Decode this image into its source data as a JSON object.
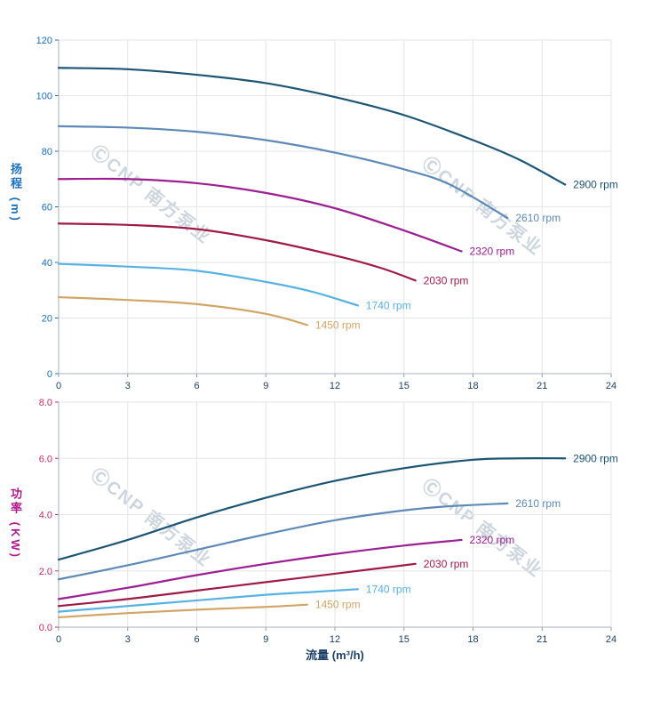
{
  "watermark": {
    "text": "ⒸCNP 南方泵业"
  },
  "x_axis_title": "流量 (m³/h)",
  "chart_data": [
    {
      "type": "line",
      "id": "head-chart",
      "ylabel_cjk": "扬程",
      "ylabel_unit": "(m)",
      "axis_color": "#1c6fba",
      "tick_label_color": "#1c6fba",
      "x_tick_color": "#1d4068",
      "xlim": [
        0,
        24
      ],
      "ylim": [
        0,
        120
      ],
      "x_ticks": [
        "0",
        "3",
        "6",
        "9",
        "12",
        "15",
        "18",
        "21",
        "24"
      ],
      "y_ticks": [
        "0",
        "20",
        "40",
        "60",
        "80",
        "100",
        "120"
      ],
      "grid": true,
      "legend_position": "curve-end",
      "series": [
        {
          "name": "2900 rpm",
          "color": "#1d5575",
          "points": [
            [
              0,
              110
            ],
            [
              3,
              109.5
            ],
            [
              6,
              107.5
            ],
            [
              9,
              104.5
            ],
            [
              12,
              99.5
            ],
            [
              15,
              93
            ],
            [
              18,
              84
            ],
            [
              20,
              77
            ],
            [
              22,
              68
            ]
          ]
        },
        {
          "name": "2610 rpm",
          "color": "#5e8ab8",
          "points": [
            [
              0,
              89
            ],
            [
              3,
              88.5
            ],
            [
              6,
              87
            ],
            [
              9,
              84
            ],
            [
              12,
              79.5
            ],
            [
              15,
              73.5
            ],
            [
              17,
              68
            ],
            [
              19.5,
              56
            ]
          ]
        },
        {
          "name": "2320 rpm",
          "color": "#9c1f93",
          "points": [
            [
              0,
              70
            ],
            [
              3,
              70
            ],
            [
              6,
              68.5
            ],
            [
              9,
              65
            ],
            [
              12,
              59.5
            ],
            [
              15,
              51.5
            ],
            [
              17.5,
              44
            ]
          ]
        },
        {
          "name": "2030 rpm",
          "color": "#a01a45",
          "points": [
            [
              0,
              54
            ],
            [
              3,
              53.5
            ],
            [
              6,
              52
            ],
            [
              9,
              48
            ],
            [
              12,
              42.5
            ],
            [
              14,
              38
            ],
            [
              15.5,
              33.5
            ]
          ]
        },
        {
          "name": "1740 rpm",
          "color": "#57b2e4",
          "points": [
            [
              0,
              39.5
            ],
            [
              3,
              38.5
            ],
            [
              6,
              37
            ],
            [
              9,
              33
            ],
            [
              11,
              29.5
            ],
            [
              13,
              24.5
            ]
          ]
        },
        {
          "name": "1450 rpm",
          "color": "#d2a566",
          "points": [
            [
              0,
              27.5
            ],
            [
              3,
              26.5
            ],
            [
              6,
              25
            ],
            [
              9,
              21.5
            ],
            [
              10.8,
              17.5
            ]
          ]
        }
      ]
    },
    {
      "type": "line",
      "id": "power-chart",
      "ylabel_cjk": "功率",
      "ylabel_unit": "(KW)",
      "axis_color": "#b01a8c",
      "tick_label_color": "#c62d66",
      "x_tick_color": "#1d4068",
      "xlim": [
        0,
        24
      ],
      "ylim": [
        0,
        8
      ],
      "x_ticks": [
        "0",
        "3",
        "6",
        "9",
        "12",
        "15",
        "18",
        "21",
        "24"
      ],
      "y_ticks": [
        "0.0",
        "2.0",
        "4.0",
        "6.0",
        "8.0"
      ],
      "grid": true,
      "legend_position": "curve-end",
      "series": [
        {
          "name": "2900 rpm",
          "color": "#1d5575",
          "points": [
            [
              0,
              2.4
            ],
            [
              3,
              3.1
            ],
            [
              6,
              3.9
            ],
            [
              9,
              4.6
            ],
            [
              12,
              5.2
            ],
            [
              15,
              5.65
            ],
            [
              18,
              5.95
            ],
            [
              20,
              6.0
            ],
            [
              22,
              6.0
            ]
          ]
        },
        {
          "name": "2610 rpm",
          "color": "#5e8ab8",
          "points": [
            [
              0,
              1.7
            ],
            [
              3,
              2.2
            ],
            [
              6,
              2.75
            ],
            [
              9,
              3.3
            ],
            [
              12,
              3.8
            ],
            [
              15,
              4.15
            ],
            [
              17,
              4.3
            ],
            [
              19.5,
              4.4
            ]
          ]
        },
        {
          "name": "2320 rpm",
          "color": "#9c1f93",
          "points": [
            [
              0,
              1.0
            ],
            [
              3,
              1.4
            ],
            [
              6,
              1.85
            ],
            [
              9,
              2.25
            ],
            [
              12,
              2.6
            ],
            [
              15,
              2.9
            ],
            [
              17.5,
              3.1
            ]
          ]
        },
        {
          "name": "2030 rpm",
          "color": "#a01a45",
          "points": [
            [
              0,
              0.75
            ],
            [
              3,
              1.0
            ],
            [
              6,
              1.3
            ],
            [
              9,
              1.6
            ],
            [
              12,
              1.9
            ],
            [
              15.5,
              2.25
            ]
          ]
        },
        {
          "name": "1740 rpm",
          "color": "#57b2e4",
          "points": [
            [
              0,
              0.55
            ],
            [
              3,
              0.75
            ],
            [
              6,
              0.95
            ],
            [
              9,
              1.15
            ],
            [
              11,
              1.25
            ],
            [
              13,
              1.35
            ]
          ]
        },
        {
          "name": "1450 rpm",
          "color": "#d2a566",
          "points": [
            [
              0,
              0.35
            ],
            [
              3,
              0.5
            ],
            [
              6,
              0.62
            ],
            [
              9,
              0.72
            ],
            [
              10.8,
              0.8
            ]
          ]
        }
      ]
    }
  ]
}
